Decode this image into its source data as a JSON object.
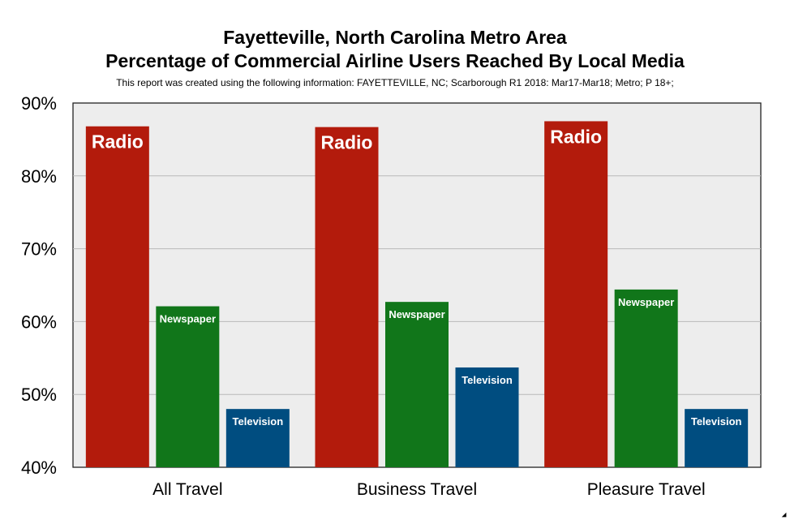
{
  "chart_data": {
    "type": "bar",
    "title": "Fayetteville, North Carolina Metro Area",
    "subtitle": "Percentage of Commercial Airline Users Reached By Local Media",
    "note": "This report was created using the following information: FAYETTEVILLE, NC; Scarborough R1 2018: Mar17-Mar18; Metro; P 18+;",
    "categories": [
      "All Travel",
      "Business Travel",
      "Pleasure Travel"
    ],
    "series": [
      {
        "name": "Radio",
        "color": "#B31B0C",
        "values": [
          86.8,
          86.7,
          87.5
        ],
        "label_size": "large"
      },
      {
        "name": "Newspaper",
        "color": "#11761A",
        "values": [
          62.1,
          62.7,
          64.4
        ],
        "label_size": "small"
      },
      {
        "name": "Television",
        "color": "#004D80",
        "values": [
          48.0,
          53.7,
          48.0
        ],
        "label_size": "small"
      }
    ],
    "ylim": [
      40,
      90
    ],
    "yticks": [
      90,
      80,
      70,
      60,
      50,
      40
    ],
    "ytick_labels": [
      "90%",
      "80%",
      "70%",
      "60%",
      "50%",
      "40%"
    ],
    "xlabel": "",
    "ylabel": "",
    "grid": true,
    "plot_background": "#EDEDED"
  }
}
